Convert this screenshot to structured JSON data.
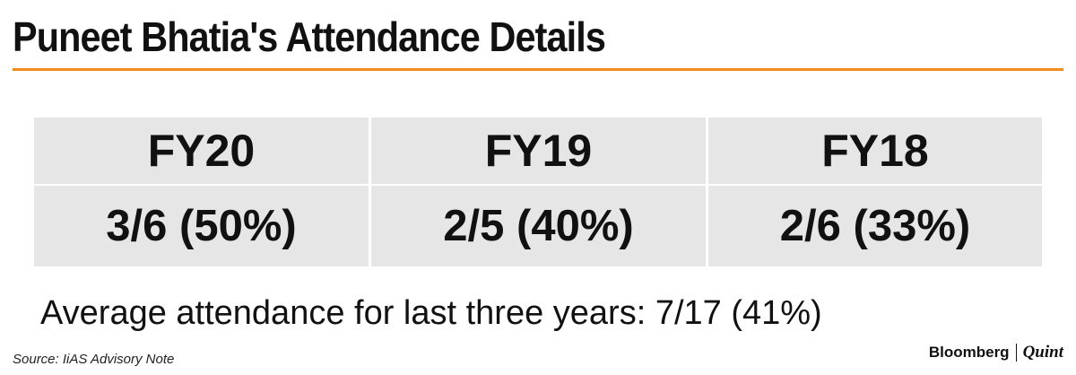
{
  "title": "Puneet Bhatia's Attendance Details",
  "accent_color": "#f08c1c",
  "cell_background": "#e6e6e6",
  "chart_data": {
    "type": "table",
    "columns": [
      "FY20",
      "FY19",
      "FY18"
    ],
    "rows": [
      [
        "3/6 (50%)",
        "2/5 (40%)",
        "2/6 (33%)"
      ]
    ],
    "attended": [
      3,
      2,
      2
    ],
    "total_meetings": [
      6,
      5,
      6
    ],
    "percent": [
      50,
      40,
      33
    ]
  },
  "average_text": "Average attendance for last three years: 7/17 (41%)",
  "source": "Source: IiAS Advisory Note",
  "brand": {
    "name": "Bloomberg",
    "sub": "Quint"
  }
}
